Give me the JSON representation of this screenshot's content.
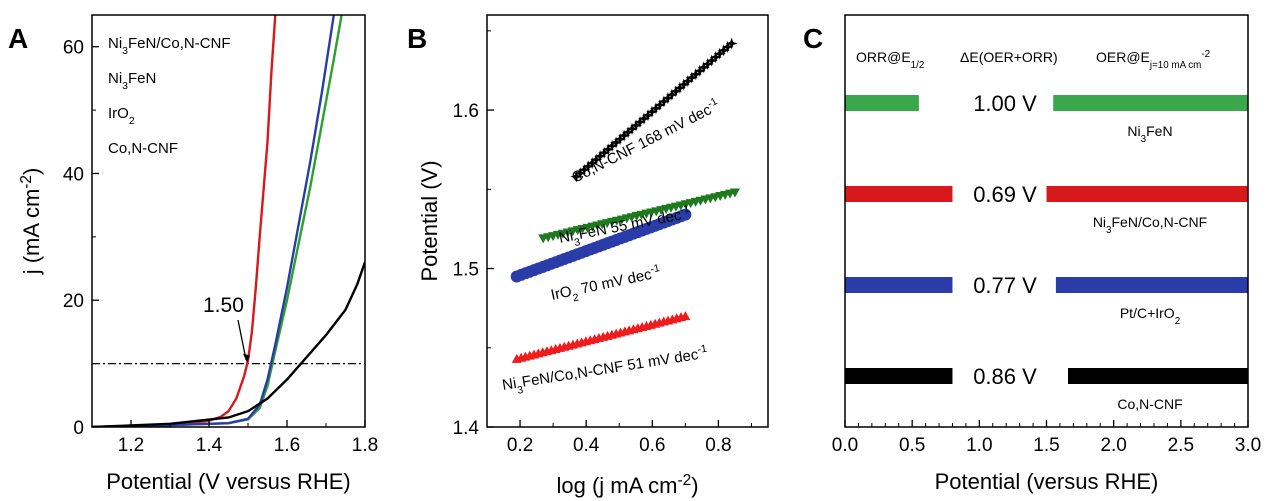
{
  "chart_data": [
    {
      "panel": "A",
      "type": "line",
      "xlabel": "Potential (V versus RHE)",
      "ylabel": "j (mA cm",
      "ylabel_sup": "-2",
      "ylabel_end": ")",
      "xlim": [
        1.1,
        1.8
      ],
      "ylim": [
        0,
        65
      ],
      "xticks": [
        1.2,
        1.4,
        1.6,
        1.8
      ],
      "yticks": [
        0,
        20,
        40,
        60
      ],
      "xtick_labels": [
        "1.2",
        "1.4",
        "1.6",
        "1.8"
      ],
      "ytick_labels": [
        "0",
        "20",
        "40",
        "60"
      ],
      "reference_line_y": 10,
      "annotation": {
        "text": "1.50",
        "x": 1.5,
        "y": 10
      },
      "legend_position": "top-left",
      "series": [
        {
          "legend": [
            {
              "t": "Ni"
            },
            {
              "t": "3",
              "s": "sub"
            },
            {
              "t": "FeN/Co,N-CNF"
            }
          ],
          "color": "#d7191c",
          "x": [
            1.1,
            1.3,
            1.4,
            1.43,
            1.45,
            1.47,
            1.49,
            1.5,
            1.51,
            1.52,
            1.53,
            1.55,
            1.56,
            1.57
          ],
          "y": [
            0,
            0.3,
            1.0,
            1.6,
            2.5,
            4.5,
            8.0,
            10.5,
            15,
            22,
            30,
            45,
            56,
            65
          ]
        },
        {
          "legend": [
            {
              "t": "Ni"
            },
            {
              "t": "3",
              "s": "sub"
            },
            {
              "t": "FeN"
            }
          ],
          "color": "#2ca02c",
          "x": [
            1.1,
            1.3,
            1.45,
            1.5,
            1.53,
            1.55,
            1.57,
            1.6,
            1.63,
            1.66,
            1.69,
            1.72,
            1.74
          ],
          "y": [
            0,
            0.3,
            0.6,
            1.2,
            3.0,
            6.5,
            12,
            20,
            29,
            38,
            48,
            58,
            65
          ]
        },
        {
          "legend": [
            {
              "t": "IrO"
            },
            {
              "t": "2",
              "s": "sub"
            }
          ],
          "color": "#2a3ca8",
          "x": [
            1.1,
            1.3,
            1.45,
            1.5,
            1.53,
            1.55,
            1.57,
            1.6,
            1.63,
            1.66,
            1.69,
            1.72
          ],
          "y": [
            0,
            0.3,
            0.6,
            1.3,
            3.5,
            7.5,
            13,
            22,
            32,
            42,
            53,
            65
          ]
        },
        {
          "legend": [
            {
              "t": "Co,N-CNF"
            }
          ],
          "color": "#000000",
          "x": [
            1.1,
            1.3,
            1.45,
            1.5,
            1.55,
            1.6,
            1.65,
            1.7,
            1.75,
            1.78,
            1.8
          ],
          "y": [
            0,
            0.5,
            1.5,
            2.5,
            4.5,
            7.5,
            11,
            14.5,
            18.5,
            22.5,
            26
          ]
        }
      ]
    },
    {
      "panel": "B",
      "type": "scatter",
      "xlabel": "log (j mA cm",
      "xlabel_sup": "-2",
      "xlabel_end": ")",
      "ylabel": "Potential (V)",
      "xlim": [
        0.1,
        0.95
      ],
      "ylim": [
        1.4,
        1.66
      ],
      "xticks": [
        0.2,
        0.4,
        0.6,
        0.8
      ],
      "yticks": [
        1.4,
        1.5,
        1.6
      ],
      "xtick_labels": [
        "0.2",
        "0.4",
        "0.6",
        "0.8"
      ],
      "ytick_labels": [
        "1.4",
        "1.5",
        "1.6"
      ],
      "series": [
        {
          "marker": "star",
          "color": "#000000",
          "x_range": [
            0.37,
            0.84
          ],
          "y_range": [
            1.558,
            1.642
          ],
          "label": [
            {
              "t": "Co,N-CNF  168 mV dec"
            },
            {
              "t": "-1",
              "s": "sup"
            }
          ]
        },
        {
          "marker": "triangle-down",
          "color": "#1f7a1f",
          "x_range": [
            0.27,
            0.85
          ],
          "y_range": [
            1.519,
            1.548
          ],
          "label": [
            {
              "t": "Ni"
            },
            {
              "t": "3",
              "s": "sub"
            },
            {
              "t": "FeN  55 mV dec"
            },
            {
              "t": "-1",
              "s": "sup"
            }
          ]
        },
        {
          "marker": "circle",
          "color": "#2a3ca8",
          "x_range": [
            0.19,
            0.7
          ],
          "y_range": [
            1.495,
            1.534
          ],
          "label": [
            {
              "t": "IrO"
            },
            {
              "t": "2",
              "s": "sub"
            },
            {
              "t": "  70 mV dec"
            },
            {
              "t": "-1",
              "s": "sup"
            }
          ]
        },
        {
          "marker": "triangle-up",
          "color": "#ee1c1c",
          "x_range": [
            0.19,
            0.7
          ],
          "y_range": [
            1.443,
            1.47
          ],
          "label": [
            {
              "t": "Ni"
            },
            {
              "t": "3",
              "s": "sub"
            },
            {
              "t": "FeN/Co,N-CNF 51 mV dec"
            },
            {
              "t": "-1",
              "s": "sup"
            }
          ]
        }
      ]
    },
    {
      "panel": "C",
      "type": "bar",
      "xlabel": "Potential (versus RHE)",
      "xlim": [
        0,
        3.0
      ],
      "xticks": [
        0.0,
        0.5,
        1.0,
        1.5,
        2.0,
        2.5,
        3.0
      ],
      "xtick_labels": [
        "0.0",
        "0.5",
        "1.0",
        "1.5",
        "2.0",
        "2.5",
        "3.0"
      ],
      "headers": [
        [
          {
            "t": "ORR@E"
          },
          {
            "t": "1/2",
            "s": "sub"
          }
        ],
        [
          {
            "t": "ΔE(OER+ORR)"
          }
        ],
        [
          {
            "t": "OER@E"
          },
          {
            "t": "j=10 mA cm",
            "s": "sub"
          },
          {
            "t": "-2",
            "s": "sup"
          }
        ]
      ],
      "rows": [
        {
          "color": "#3aa84a",
          "orr_end": 0.55,
          "oer_start": 1.55,
          "delta": "1.00 V",
          "label": [
            {
              "t": "Ni"
            },
            {
              "t": "3",
              "s": "sub"
            },
            {
              "t": "FeN"
            }
          ]
        },
        {
          "color": "#d7191c",
          "orr_end": 0.8,
          "oer_start": 1.5,
          "delta": "0.69 V",
          "label": [
            {
              "t": "Ni"
            },
            {
              "t": "3",
              "s": "sub"
            },
            {
              "t": "FeN/Co,N-CNF"
            }
          ]
        },
        {
          "color": "#2a3ca8",
          "orr_end": 0.8,
          "oer_start": 1.57,
          "delta": "0.77 V",
          "label": [
            {
              "t": "Pt/C+IrO"
            },
            {
              "t": "2",
              "s": "sub"
            }
          ]
        },
        {
          "color": "#000000",
          "orr_end": 0.8,
          "oer_start": 1.66,
          "delta": "0.86 V",
          "label": [
            {
              "t": "Co,N-CNF"
            }
          ]
        }
      ]
    }
  ]
}
